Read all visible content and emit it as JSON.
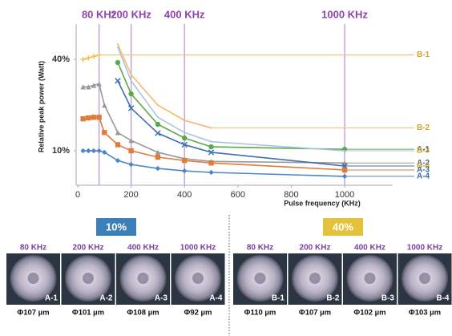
{
  "chart_data": {
    "type": "line",
    "y_label": "Relative peak power (Watt)",
    "x_label": "Pulse frequency (KHz)",
    "x": [
      20,
      40,
      60,
      80,
      100,
      150,
      200,
      300,
      400,
      500,
      1000
    ],
    "xlim": [
      0,
      1180
    ],
    "xticks": [
      0,
      200,
      400,
      600,
      800,
      1000
    ],
    "ylim": [
      0,
      49
    ],
    "yticks": [
      {
        "value": 10,
        "label": "10%",
        "color": "#4a86c8"
      },
      {
        "value": 40,
        "label": "40%",
        "color": "#e0b23a"
      }
    ],
    "markers": [
      {
        "value": 80,
        "label": "80 KHz"
      },
      {
        "value": 200,
        "label": "200 KHz"
      },
      {
        "value": 400,
        "label": "400 KHz"
      },
      {
        "value": 1000,
        "label": "1000 KHz"
      }
    ],
    "marker_color": "#b98ed6",
    "series": [
      {
        "name": "B-1",
        "color": "#f2c14e",
        "label_color": "#d4a52a",
        "marker": "plus",
        "values": [
          40,
          40.5,
          41,
          41.5,
          null,
          null,
          null,
          null,
          null,
          null,
          null
        ]
      },
      {
        "name": "B-2",
        "color": "#f5b971",
        "label_color": "#d4a52a",
        "marker": "none",
        "values": [
          null,
          null,
          null,
          null,
          null,
          45,
          35,
          25,
          20,
          17.5,
          null
        ]
      },
      {
        "name": "A-1",
        "color": "#5aaa46",
        "label_color": "#3a6aa8",
        "marker": "circle",
        "values": [
          null,
          null,
          null,
          null,
          null,
          39,
          28.7,
          18.7,
          14.2,
          11.3,
          10.5
        ]
      },
      {
        "name": "B-3",
        "color": "#a9c4e0",
        "label_color": "#d4a52a",
        "marker": "none",
        "values": [
          null,
          null,
          null,
          null,
          null,
          44,
          33,
          21,
          16,
          13,
          10
        ]
      },
      {
        "name": "A-2",
        "color": "#999999",
        "label_color": "#3a6aa8",
        "marker": "triangle",
        "values": [
          31,
          31,
          31.5,
          32,
          25,
          16,
          13.4,
          9.5,
          7.4,
          6.5,
          6
        ]
      },
      {
        "name": "B-4",
        "color": "#3f6fb5",
        "label_color": "#d4a52a",
        "marker": "cross",
        "values": [
          null,
          null,
          null,
          null,
          null,
          33,
          24,
          15.8,
          12,
          9.5,
          5
        ]
      },
      {
        "name": "A-3",
        "color": "#e07b39",
        "label_color": "#3a6aa8",
        "marker": "square",
        "values": [
          20.5,
          20.8,
          21,
          21,
          16,
          12,
          10,
          7.9,
          6.8,
          6,
          3.7
        ]
      },
      {
        "name": "A-4",
        "color": "#4a86c8",
        "label_color": "#3a6aa8",
        "marker": "diamond",
        "values": [
          10,
          10,
          10,
          10,
          9.5,
          6.8,
          5.5,
          4.2,
          3.4,
          2.9,
          1.6
        ]
      }
    ]
  },
  "panels": [
    {
      "badge": "10%",
      "color": "#3d7fb8",
      "items": [
        {
          "freq": "80 KHz",
          "tag": "A-1",
          "size": "Φ107 µm"
        },
        {
          "freq": "200 KHz",
          "tag": "A-2",
          "size": "Φ101 µm"
        },
        {
          "freq": "400 KHz",
          "tag": "A-3",
          "size": "Φ108 µm"
        },
        {
          "freq": "1000 KHz",
          "tag": "A-4",
          "size": "Φ92 µm"
        }
      ]
    },
    {
      "badge": "40%",
      "color": "#e3c23c",
      "items": [
        {
          "freq": "80 KHz",
          "tag": "B-1",
          "size": "Φ110 µm"
        },
        {
          "freq": "200 KHz",
          "tag": "B-2",
          "size": "Φ107 µm"
        },
        {
          "freq": "400 KHz",
          "tag": "B-3",
          "size": "Φ102 µm"
        },
        {
          "freq": "1000 KHz",
          "tag": "B-4",
          "size": "Φ103 µm"
        }
      ]
    }
  ]
}
